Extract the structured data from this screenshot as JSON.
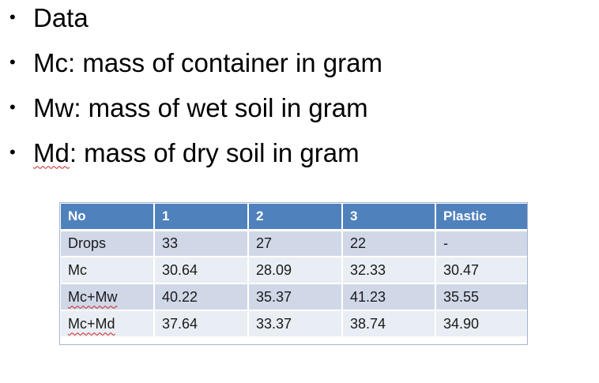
{
  "bullets": [
    {
      "text": "Data"
    },
    {
      "text": "Mc: mass of container in gram"
    },
    {
      "text": "Mw: mass of wet soil in gram"
    },
    {
      "prefix": "Md",
      "text": ": mass of dry soil in gram"
    }
  ],
  "table": {
    "headers": [
      "No",
      "1",
      "2",
      "3",
      "Plastic"
    ],
    "rows": [
      [
        "Drops",
        "33",
        "27",
        "22",
        "-"
      ],
      [
        "Mc",
        "30.64",
        "28.09",
        "32.33",
        "30.47"
      ],
      [
        "Mc+Mw",
        "40.22",
        "35.37",
        "41.23",
        "35.55"
      ],
      [
        "Mc+Md",
        "37.64",
        "33.37",
        "38.74",
        "34.90"
      ]
    ]
  }
}
